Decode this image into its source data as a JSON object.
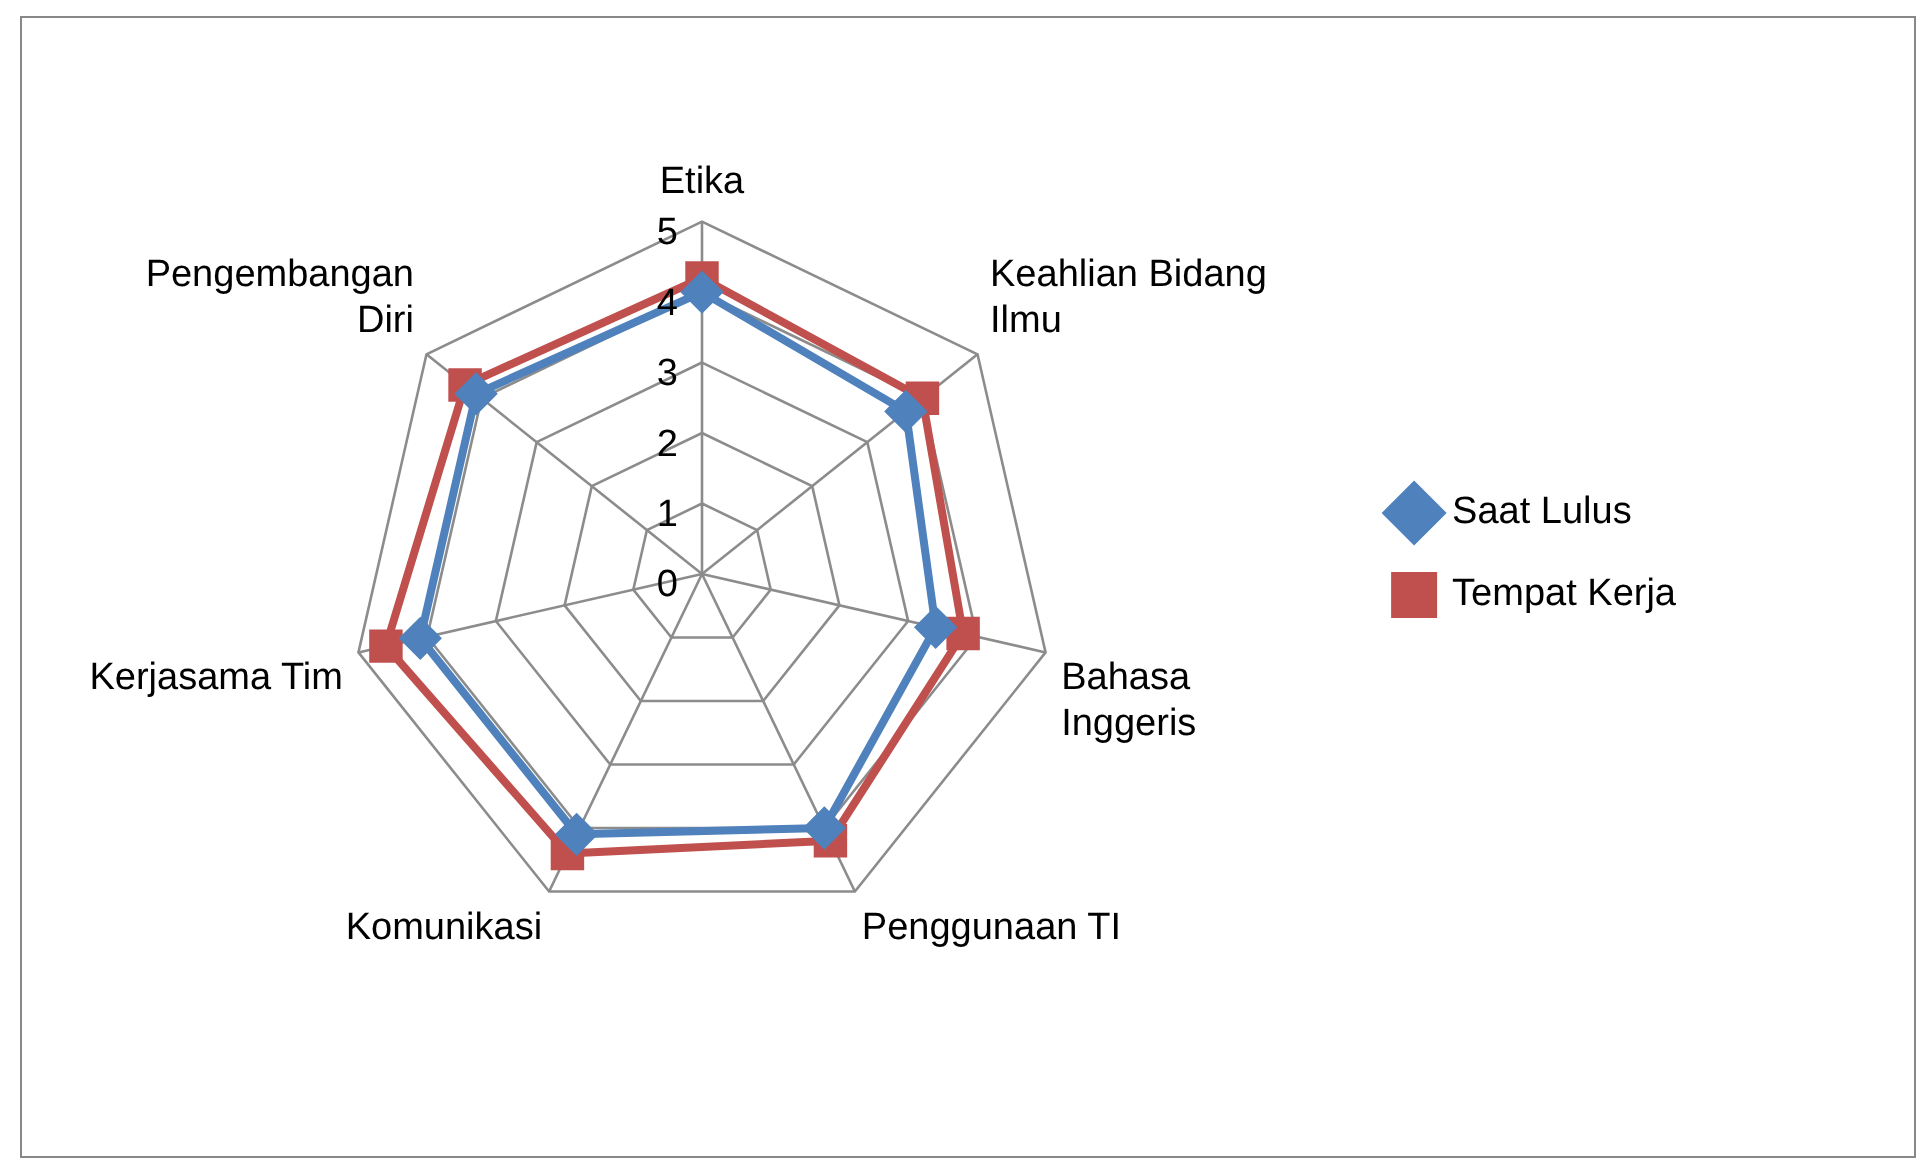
{
  "chart_data": {
    "type": "radar",
    "categories": [
      "Etika",
      "Keahlian Bidang Ilmu",
      "Bahasa Inggeris",
      "Penggunaan TI",
      "Komunikasi",
      "Kerjasama Tim",
      "Pengembangan Diri"
    ],
    "series": [
      {
        "name": "Saat Lulus",
        "color": "#4f81bd",
        "marker": "diamond",
        "values": [
          4.0,
          3.7,
          3.4,
          4.0,
          4.1,
          4.1,
          4.1
        ]
      },
      {
        "name": "Tempat Kerja",
        "color": "#c0504d",
        "marker": "square",
        "values": [
          4.2,
          4.0,
          3.8,
          4.2,
          4.4,
          4.6,
          4.3
        ]
      }
    ],
    "ylim": [
      0,
      5
    ],
    "yticks": [
      0,
      1,
      2,
      3,
      4,
      5
    ],
    "grid": true,
    "legend": "right"
  }
}
